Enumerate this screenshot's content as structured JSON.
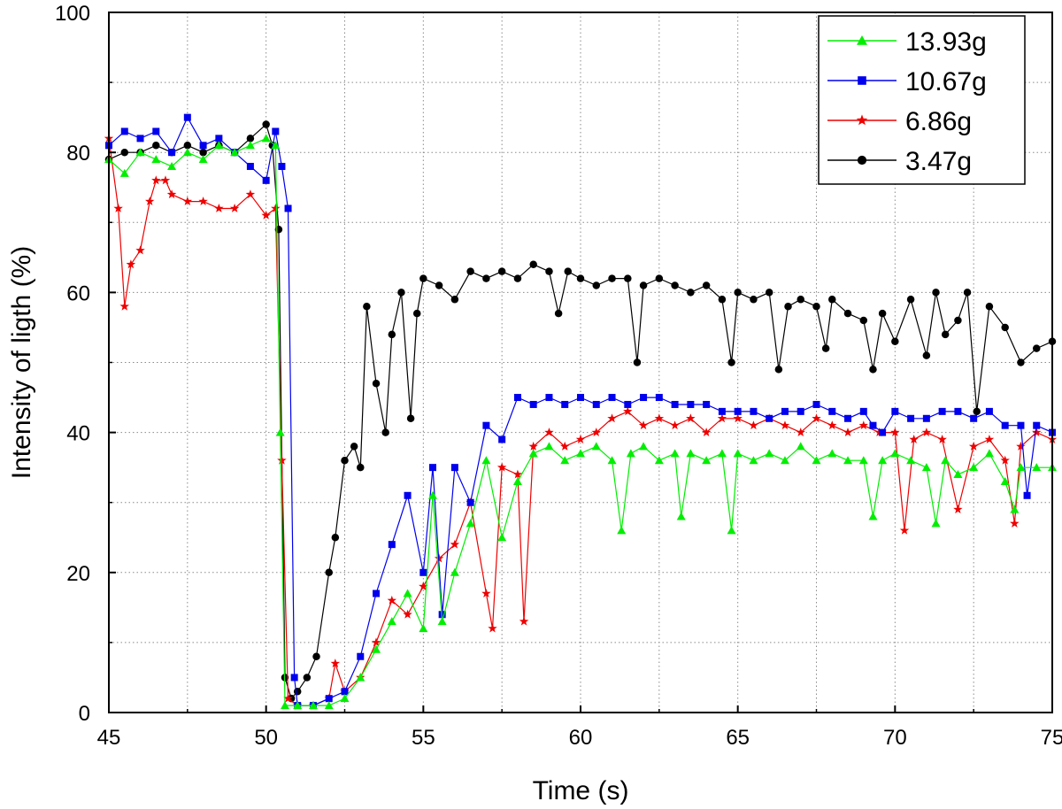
{
  "chart_data": {
    "type": "line",
    "title": "",
    "xlabel": "Time (s)",
    "ylabel": "Intensity of ligth (%)",
    "xlim": [
      45,
      75
    ],
    "ylim": [
      0,
      100
    ],
    "xticks": [
      45,
      50,
      55,
      60,
      65,
      70,
      75
    ],
    "yticks": [
      0,
      20,
      40,
      60,
      80,
      100
    ],
    "xticks_minor": [
      47.5,
      52.5,
      57.5,
      62.5,
      67.5,
      72.5
    ],
    "yticks_minor": [
      10,
      30,
      50,
      70,
      90
    ],
    "grid": true,
    "legend_position": "top-right",
    "series": [
      {
        "name": "13.93g",
        "color": "#00ee00",
        "marker": "triangle",
        "x": [
          45.0,
          45.5,
          46.0,
          46.5,
          47.0,
          47.5,
          48.0,
          48.5,
          49.0,
          49.5,
          50.0,
          50.3,
          50.45,
          50.6,
          51.0,
          51.5,
          52.0,
          52.5,
          53.0,
          53.5,
          54.0,
          54.5,
          55.0,
          55.3,
          55.6,
          56.0,
          56.5,
          57.0,
          57.5,
          58.0,
          58.5,
          59.0,
          59.5,
          60.0,
          60.5,
          61.0,
          61.3,
          61.6,
          62.0,
          62.5,
          63.0,
          63.2,
          63.5,
          64.0,
          64.5,
          64.8,
          65.0,
          65.5,
          66.0,
          66.5,
          67.0,
          67.5,
          68.0,
          68.5,
          69.0,
          69.3,
          69.6,
          70.0,
          70.5,
          71.0,
          71.3,
          71.6,
          72.0,
          72.5,
          73.0,
          73.5,
          73.8,
          74.0,
          74.5,
          75.0
        ],
        "y": [
          79,
          77,
          80,
          79,
          78,
          80,
          79,
          81,
          80,
          81,
          82,
          81,
          40,
          1,
          1,
          1,
          1,
          2,
          5,
          9,
          13,
          17,
          12,
          31,
          13,
          20,
          27,
          36,
          25,
          33,
          37,
          38,
          36,
          37,
          38,
          36,
          26,
          37,
          38,
          36,
          37,
          28,
          37,
          36,
          37,
          26,
          37,
          36,
          37,
          36,
          38,
          36,
          37,
          36,
          36,
          28,
          36,
          37,
          36,
          35,
          27,
          36,
          34,
          35,
          37,
          33,
          29,
          35,
          35,
          35
        ]
      },
      {
        "name": "10.67g",
        "color": "#0000ee",
        "marker": "square",
        "x": [
          45.0,
          45.5,
          46.0,
          46.5,
          47.0,
          47.5,
          48.0,
          48.5,
          49.0,
          49.5,
          50.0,
          50.3,
          50.5,
          50.7,
          50.9,
          51.0,
          51.5,
          52.0,
          52.5,
          53.0,
          53.5,
          54.0,
          54.5,
          55.0,
          55.3,
          55.6,
          56.0,
          56.5,
          57.0,
          57.5,
          58.0,
          58.5,
          59.0,
          59.5,
          60.0,
          60.5,
          61.0,
          61.5,
          62.0,
          62.5,
          63.0,
          63.5,
          64.0,
          64.5,
          65.0,
          65.5,
          66.0,
          66.5,
          67.0,
          67.5,
          68.0,
          68.5,
          69.0,
          69.3,
          69.6,
          70.0,
          70.5,
          71.0,
          71.5,
          72.0,
          72.5,
          73.0,
          73.5,
          74.0,
          74.2,
          74.5,
          75.0
        ],
        "y": [
          81,
          83,
          82,
          83,
          80,
          85,
          81,
          82,
          80,
          78,
          76,
          83,
          78,
          72,
          5,
          1,
          1,
          2,
          3,
          8,
          17,
          24,
          31,
          20,
          35,
          14,
          35,
          30,
          41,
          39,
          45,
          44,
          45,
          44,
          45,
          44,
          45,
          44,
          45,
          45,
          44,
          44,
          44,
          43,
          43,
          43,
          42,
          43,
          43,
          44,
          43,
          42,
          43,
          41,
          40,
          43,
          42,
          42,
          43,
          43,
          42,
          43,
          41,
          41,
          31,
          41,
          40
        ]
      },
      {
        "name": "6.86g",
        "color": "#ee0000",
        "marker": "star",
        "x": [
          45.0,
          45.3,
          45.5,
          45.7,
          46.0,
          46.3,
          46.5,
          46.8,
          47.0,
          47.5,
          48.0,
          48.5,
          49.0,
          49.5,
          50.0,
          50.3,
          50.5,
          50.7,
          51.0,
          51.5,
          52.0,
          52.2,
          52.5,
          53.0,
          53.5,
          54.0,
          54.5,
          55.0,
          55.5,
          56.0,
          56.5,
          57.0,
          57.2,
          57.5,
          58.0,
          58.2,
          58.5,
          59.0,
          59.5,
          60.0,
          60.5,
          61.0,
          61.5,
          62.0,
          62.5,
          63.0,
          63.5,
          64.0,
          64.5,
          65.0,
          65.5,
          66.0,
          66.5,
          67.0,
          67.5,
          68.0,
          68.5,
          69.0,
          69.5,
          70.0,
          70.3,
          70.6,
          71.0,
          71.5,
          72.0,
          72.5,
          73.0,
          73.5,
          73.8,
          74.0,
          74.5,
          75.0
        ],
        "y": [
          82,
          72,
          58,
          64,
          66,
          73,
          76,
          76,
          74,
          73,
          73,
          72,
          72,
          74,
          71,
          72,
          36,
          2,
          1,
          1,
          2,
          7,
          3,
          5,
          10,
          16,
          14,
          18,
          22,
          24,
          30,
          17,
          12,
          35,
          34,
          13,
          38,
          40,
          38,
          39,
          40,
          42,
          43,
          41,
          42,
          41,
          42,
          40,
          42,
          42,
          41,
          42,
          41,
          40,
          42,
          41,
          40,
          41,
          40,
          40,
          26,
          39,
          40,
          39,
          29,
          38,
          39,
          36,
          27,
          38,
          40,
          39
        ]
      },
      {
        "name": "3.47g",
        "color": "#000000",
        "marker": "circle",
        "x": [
          45.0,
          45.5,
          46.0,
          46.5,
          47.0,
          47.5,
          48.0,
          48.5,
          49.0,
          49.5,
          50.0,
          50.2,
          50.4,
          50.6,
          50.8,
          51.0,
          51.3,
          51.6,
          52.0,
          52.2,
          52.5,
          52.8,
          53.0,
          53.2,
          53.5,
          53.8,
          54.0,
          54.3,
          54.6,
          54.8,
          55.0,
          55.5,
          56.0,
          56.5,
          57.0,
          57.5,
          58.0,
          58.5,
          59.0,
          59.3,
          59.6,
          60.0,
          60.5,
          61.0,
          61.5,
          61.8,
          62.0,
          62.5,
          63.0,
          63.5,
          64.0,
          64.5,
          64.8,
          65.0,
          65.5,
          66.0,
          66.3,
          66.6,
          67.0,
          67.5,
          67.8,
          68.0,
          68.5,
          69.0,
          69.3,
          69.6,
          70.0,
          70.5,
          71.0,
          71.3,
          71.6,
          72.0,
          72.3,
          72.6,
          73.0,
          73.5,
          74.0,
          74.5,
          75.0
        ],
        "y": [
          79,
          80,
          80,
          81,
          80,
          81,
          80,
          81,
          80,
          82,
          84,
          81,
          69,
          5,
          2,
          3,
          5,
          8,
          20,
          25,
          36,
          38,
          35,
          58,
          47,
          40,
          54,
          60,
          42,
          57,
          62,
          61,
          59,
          63,
          62,
          63,
          62,
          64,
          63,
          57,
          63,
          62,
          61,
          62,
          62,
          50,
          61,
          62,
          61,
          60,
          61,
          59,
          50,
          60,
          59,
          60,
          49,
          58,
          59,
          58,
          52,
          59,
          57,
          56,
          49,
          57,
          53,
          59,
          51,
          60,
          54,
          56,
          60,
          43,
          58,
          55,
          50,
          52,
          53
        ]
      }
    ]
  }
}
